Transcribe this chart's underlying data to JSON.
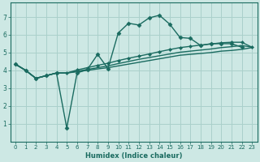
{
  "xlabel": "Humidex (Indice chaleur)",
  "xlim": [
    -0.5,
    23.5
  ],
  "ylim": [
    0,
    7.8
  ],
  "xticks": [
    0,
    1,
    2,
    3,
    4,
    5,
    6,
    7,
    8,
    9,
    10,
    11,
    12,
    13,
    14,
    15,
    16,
    17,
    18,
    19,
    20,
    21,
    22,
    23
  ],
  "yticks": [
    1,
    2,
    3,
    4,
    5,
    6,
    7
  ],
  "background_color": "#cde8e4",
  "grid_color": "#aad0cb",
  "line_color": "#1a6b60",
  "lines": [
    {
      "x": [
        0,
        1,
        2,
        3,
        4,
        5,
        6,
        7,
        8,
        9,
        10,
        11,
        12,
        13,
        14,
        15,
        16,
        17,
        18,
        19,
        20,
        21,
        22,
        23
      ],
      "y": [
        4.35,
        4.0,
        3.55,
        3.7,
        3.85,
        0.75,
        3.85,
        4.05,
        4.9,
        4.1,
        6.1,
        6.65,
        6.55,
        6.95,
        7.1,
        6.6,
        5.85,
        5.8,
        5.4,
        5.5,
        5.5,
        5.5,
        5.3,
        null
      ],
      "marker": "D",
      "markersize": 2.5,
      "linewidth": 1.0
    },
    {
      "x": [
        0,
        1,
        2,
        3,
        4,
        5,
        6,
        7,
        8,
        9,
        10,
        11,
        12,
        13,
        14,
        15,
        16,
        17,
        18,
        19,
        20,
        21,
        22,
        23
      ],
      "y": [
        4.35,
        4.0,
        3.55,
        3.7,
        3.85,
        3.85,
        3.92,
        4.0,
        4.08,
        4.15,
        4.25,
        4.35,
        4.45,
        4.55,
        4.65,
        4.75,
        4.85,
        4.9,
        4.95,
        5.0,
        5.08,
        5.12,
        5.18,
        5.28
      ],
      "marker": null,
      "linewidth": 1.0
    },
    {
      "x": [
        0,
        1,
        2,
        3,
        4,
        5,
        6,
        7,
        8,
        9,
        10,
        11,
        12,
        13,
        14,
        15,
        16,
        17,
        18,
        19,
        20,
        21,
        22,
        23
      ],
      "y": [
        4.35,
        4.0,
        3.55,
        3.7,
        3.85,
        3.85,
        3.95,
        4.05,
        4.15,
        4.25,
        4.38,
        4.5,
        4.62,
        4.72,
        4.82,
        4.92,
        5.02,
        5.08,
        5.14,
        5.2,
        5.28,
        5.33,
        5.4,
        5.3
      ],
      "marker": null,
      "linewidth": 1.0
    },
    {
      "x": [
        0,
        1,
        2,
        3,
        4,
        5,
        6,
        7,
        8,
        9,
        10,
        11,
        12,
        13,
        14,
        15,
        16,
        17,
        18,
        19,
        20,
        21,
        22,
        23
      ],
      "y": [
        4.35,
        4.0,
        3.55,
        3.7,
        3.85,
        3.85,
        4.02,
        4.15,
        4.28,
        4.4,
        4.55,
        4.68,
        4.8,
        4.92,
        5.05,
        5.17,
        5.28,
        5.35,
        5.42,
        5.48,
        5.55,
        5.58,
        5.58,
        5.3
      ],
      "marker": "D",
      "markersize": 2.0,
      "linewidth": 1.0
    }
  ]
}
